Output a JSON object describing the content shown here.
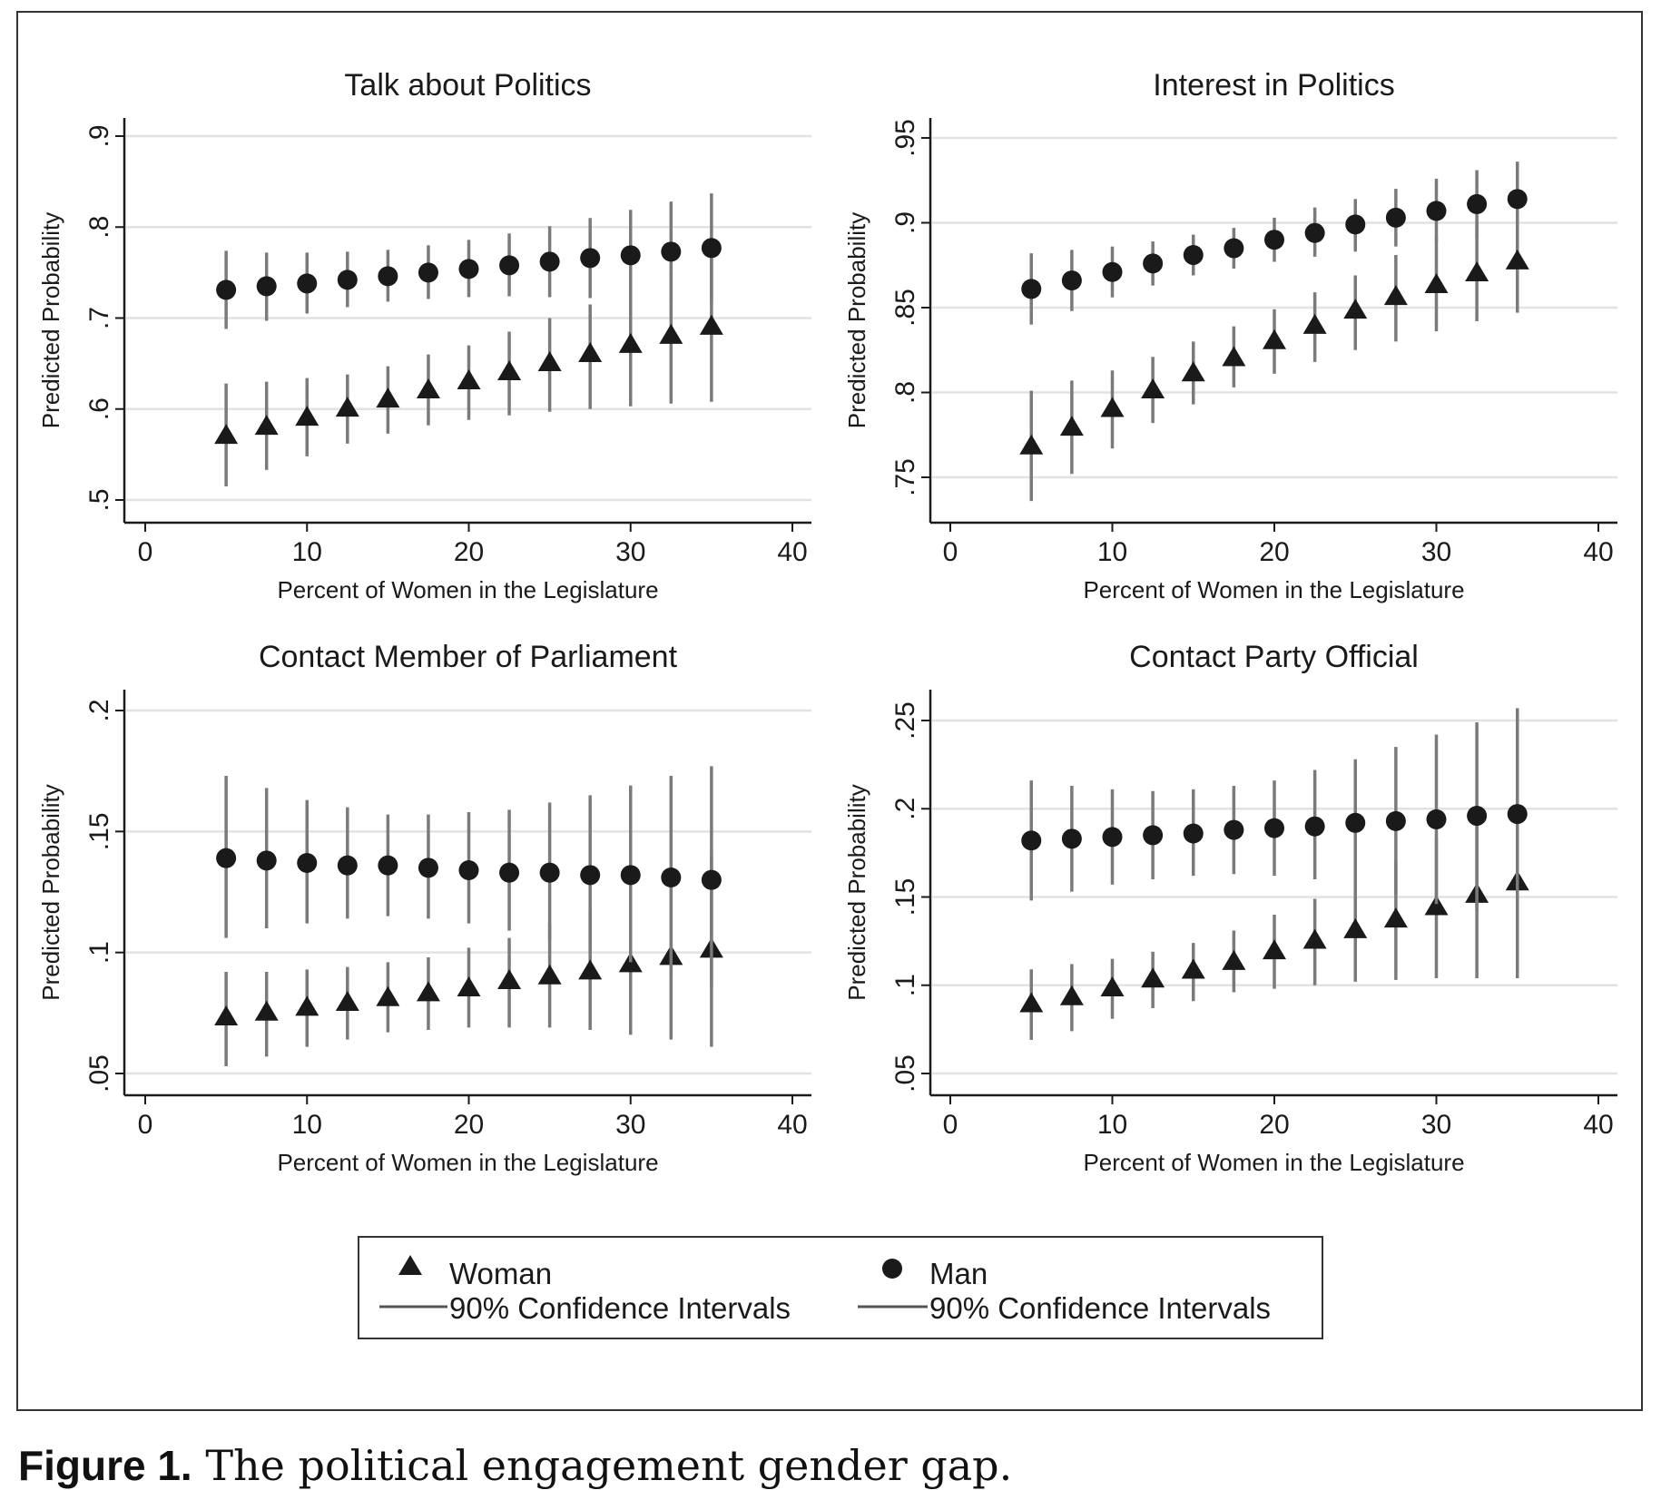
{
  "caption": {
    "label": "Figure 1.",
    "text": " The political engagement gender gap."
  },
  "legend": {
    "woman_label": "Woman",
    "man_label": "Man",
    "woman_ci_label": "90% Confidence Intervals",
    "man_ci_label": "90% Confidence Intervals"
  },
  "colors": {
    "marker": "#1a1a1a",
    "ci_line": "#7a7a7a",
    "grid": "#e2e2e2",
    "axis": "#1a1a1a"
  },
  "chart_data": [
    {
      "type": "scatter",
      "title": "Talk about Politics",
      "xlabel": "Percent of Women in the Legislature",
      "ylabel": "Predicted Probability",
      "xlim": [
        0,
        40
      ],
      "xticks": [
        0,
        10,
        20,
        30,
        40
      ],
      "xtick_labels": [
        "0",
        "10",
        "20",
        "30",
        "40"
      ],
      "ylim": [
        0.5,
        0.9
      ],
      "yticks": [
        0.5,
        0.6,
        0.7,
        0.8,
        0.9
      ],
      "ytick_labels": [
        ".5",
        ".6",
        ".7",
        ".8",
        ".9"
      ],
      "grid": true,
      "x": [
        5,
        7.5,
        10,
        12.5,
        15,
        17.5,
        20,
        22.5,
        25,
        27.5,
        30,
        32.5,
        35
      ],
      "series": [
        {
          "name": "Woman",
          "marker": "triangle",
          "values": [
            0.57,
            0.58,
            0.59,
            0.6,
            0.61,
            0.62,
            0.63,
            0.64,
            0.65,
            0.66,
            0.67,
            0.68,
            0.69
          ],
          "ci_low": [
            0.515,
            0.533,
            0.548,
            0.562,
            0.573,
            0.582,
            0.588,
            0.593,
            0.597,
            0.6,
            0.603,
            0.606,
            0.608
          ],
          "ci_high": [
            0.628,
            0.63,
            0.634,
            0.638,
            0.647,
            0.66,
            0.67,
            0.685,
            0.7,
            0.715,
            0.732,
            0.75,
            0.77
          ]
        },
        {
          "name": "Man",
          "marker": "circle",
          "values": [
            0.731,
            0.735,
            0.738,
            0.742,
            0.746,
            0.75,
            0.754,
            0.758,
            0.762,
            0.766,
            0.769,
            0.773,
            0.777
          ],
          "ci_low": [
            0.688,
            0.697,
            0.705,
            0.712,
            0.718,
            0.721,
            0.723,
            0.724,
            0.723,
            0.722,
            0.72,
            0.718,
            0.716
          ],
          "ci_high": [
            0.774,
            0.772,
            0.772,
            0.773,
            0.775,
            0.78,
            0.786,
            0.793,
            0.801,
            0.81,
            0.819,
            0.828,
            0.837
          ]
        }
      ]
    },
    {
      "type": "scatter",
      "title": "Interest in Politics",
      "xlabel": "Percent of Women in the Legislature",
      "ylabel": "Predicted Probability",
      "xlim": [
        0,
        40
      ],
      "xticks": [
        0,
        10,
        20,
        30,
        40
      ],
      "xtick_labels": [
        "0",
        "10",
        "20",
        "30",
        "40"
      ],
      "ylim": [
        0.75,
        0.95
      ],
      "yticks": [
        0.75,
        0.8,
        0.85,
        0.9,
        0.95
      ],
      "ytick_labels": [
        ".75",
        ".8",
        ".85",
        ".9",
        ".95"
      ],
      "grid": true,
      "x": [
        5,
        7.5,
        10,
        12.5,
        15,
        17.5,
        20,
        22.5,
        25,
        27.5,
        30,
        32.5,
        35
      ],
      "series": [
        {
          "name": "Woman",
          "marker": "triangle",
          "values": [
            0.768,
            0.779,
            0.79,
            0.801,
            0.811,
            0.82,
            0.83,
            0.839,
            0.848,
            0.856,
            0.863,
            0.87,
            0.877
          ],
          "ci_low": [
            0.736,
            0.752,
            0.767,
            0.782,
            0.793,
            0.803,
            0.811,
            0.818,
            0.825,
            0.83,
            0.836,
            0.842,
            0.847
          ],
          "ci_high": [
            0.801,
            0.807,
            0.813,
            0.821,
            0.83,
            0.839,
            0.849,
            0.859,
            0.869,
            0.881,
            0.892,
            0.901,
            0.91
          ]
        },
        {
          "name": "Man",
          "marker": "circle",
          "values": [
            0.861,
            0.866,
            0.871,
            0.876,
            0.881,
            0.885,
            0.89,
            0.894,
            0.899,
            0.903,
            0.907,
            0.911,
            0.914
          ],
          "ci_low": [
            0.84,
            0.848,
            0.856,
            0.863,
            0.869,
            0.873,
            0.877,
            0.88,
            0.883,
            0.886,
            0.889,
            0.891,
            0.892
          ],
          "ci_high": [
            0.882,
            0.884,
            0.886,
            0.889,
            0.893,
            0.897,
            0.903,
            0.909,
            0.914,
            0.92,
            0.926,
            0.931,
            0.936
          ]
        }
      ]
    },
    {
      "type": "scatter",
      "title": "Contact Member of Parliament",
      "xlabel": "Percent of Women in the Legislature",
      "ylabel": "Predicted Probability",
      "xlim": [
        0,
        40
      ],
      "xticks": [
        0,
        10,
        20,
        30,
        40
      ],
      "xtick_labels": [
        "0",
        "10",
        "20",
        "30",
        "40"
      ],
      "ylim": [
        0.05,
        0.2
      ],
      "yticks": [
        0.05,
        0.1,
        0.15,
        0.2
      ],
      "ytick_labels": [
        ".05",
        ".1",
        ".15",
        ".2"
      ],
      "grid": true,
      "x": [
        5,
        7.5,
        10,
        12.5,
        15,
        17.5,
        20,
        22.5,
        25,
        27.5,
        30,
        32.5,
        35
      ],
      "series": [
        {
          "name": "Woman",
          "marker": "triangle",
          "values": [
            0.073,
            0.075,
            0.077,
            0.079,
            0.081,
            0.083,
            0.085,
            0.088,
            0.09,
            0.092,
            0.095,
            0.098,
            0.101
          ],
          "ci_low": [
            0.053,
            0.057,
            0.061,
            0.064,
            0.067,
            0.068,
            0.069,
            0.069,
            0.069,
            0.068,
            0.066,
            0.064,
            0.061
          ],
          "ci_high": [
            0.092,
            0.092,
            0.093,
            0.094,
            0.096,
            0.098,
            0.102,
            0.106,
            0.112,
            0.118,
            0.125,
            0.132,
            0.14
          ]
        },
        {
          "name": "Man",
          "marker": "circle",
          "values": [
            0.139,
            0.138,
            0.137,
            0.136,
            0.136,
            0.135,
            0.134,
            0.133,
            0.133,
            0.132,
            0.132,
            0.131,
            0.13
          ],
          "ci_low": [
            0.106,
            0.11,
            0.112,
            0.114,
            0.115,
            0.114,
            0.112,
            0.109,
            0.105,
            0.101,
            0.096,
            0.091,
            0.086
          ],
          "ci_high": [
            0.173,
            0.168,
            0.163,
            0.16,
            0.157,
            0.157,
            0.158,
            0.159,
            0.162,
            0.165,
            0.169,
            0.173,
            0.177
          ]
        }
      ]
    },
    {
      "type": "scatter",
      "title": "Contact Party Official",
      "xlabel": "Percent of Women in the Legislature",
      "ylabel": "Predicted Probability",
      "xlim": [
        0,
        40
      ],
      "xticks": [
        0,
        10,
        20,
        30,
        40
      ],
      "xtick_labels": [
        "0",
        "10",
        "20",
        "30",
        "40"
      ],
      "ylim": [
        0.05,
        0.25
      ],
      "yticks": [
        0.05,
        0.1,
        0.15,
        0.2,
        0.25
      ],
      "ytick_labels": [
        ".05",
        ".1",
        ".15",
        ".2",
        ".25"
      ],
      "grid": true,
      "x": [
        5,
        7.5,
        10,
        12.5,
        15,
        17.5,
        20,
        22.5,
        25,
        27.5,
        30,
        32.5,
        35
      ],
      "series": [
        {
          "name": "Woman",
          "marker": "triangle",
          "values": [
            0.089,
            0.093,
            0.098,
            0.103,
            0.108,
            0.113,
            0.119,
            0.125,
            0.131,
            0.137,
            0.144,
            0.151,
            0.158
          ],
          "ci_low": [
            0.069,
            0.074,
            0.081,
            0.087,
            0.091,
            0.096,
            0.098,
            0.1,
            0.102,
            0.103,
            0.104,
            0.104,
            0.104
          ],
          "ci_high": [
            0.109,
            0.112,
            0.115,
            0.119,
            0.124,
            0.131,
            0.14,
            0.149,
            0.16,
            0.171,
            0.184,
            0.197,
            0.21
          ]
        },
        {
          "name": "Man",
          "marker": "circle",
          "values": [
            0.182,
            0.183,
            0.184,
            0.185,
            0.186,
            0.188,
            0.189,
            0.19,
            0.192,
            0.193,
            0.194,
            0.196,
            0.197
          ],
          "ci_low": [
            0.148,
            0.153,
            0.157,
            0.16,
            0.162,
            0.163,
            0.162,
            0.16,
            0.156,
            0.151,
            0.146,
            0.142,
            0.137
          ],
          "ci_high": [
            0.216,
            0.213,
            0.211,
            0.21,
            0.211,
            0.213,
            0.216,
            0.222,
            0.228,
            0.235,
            0.242,
            0.249,
            0.257
          ]
        }
      ]
    }
  ]
}
